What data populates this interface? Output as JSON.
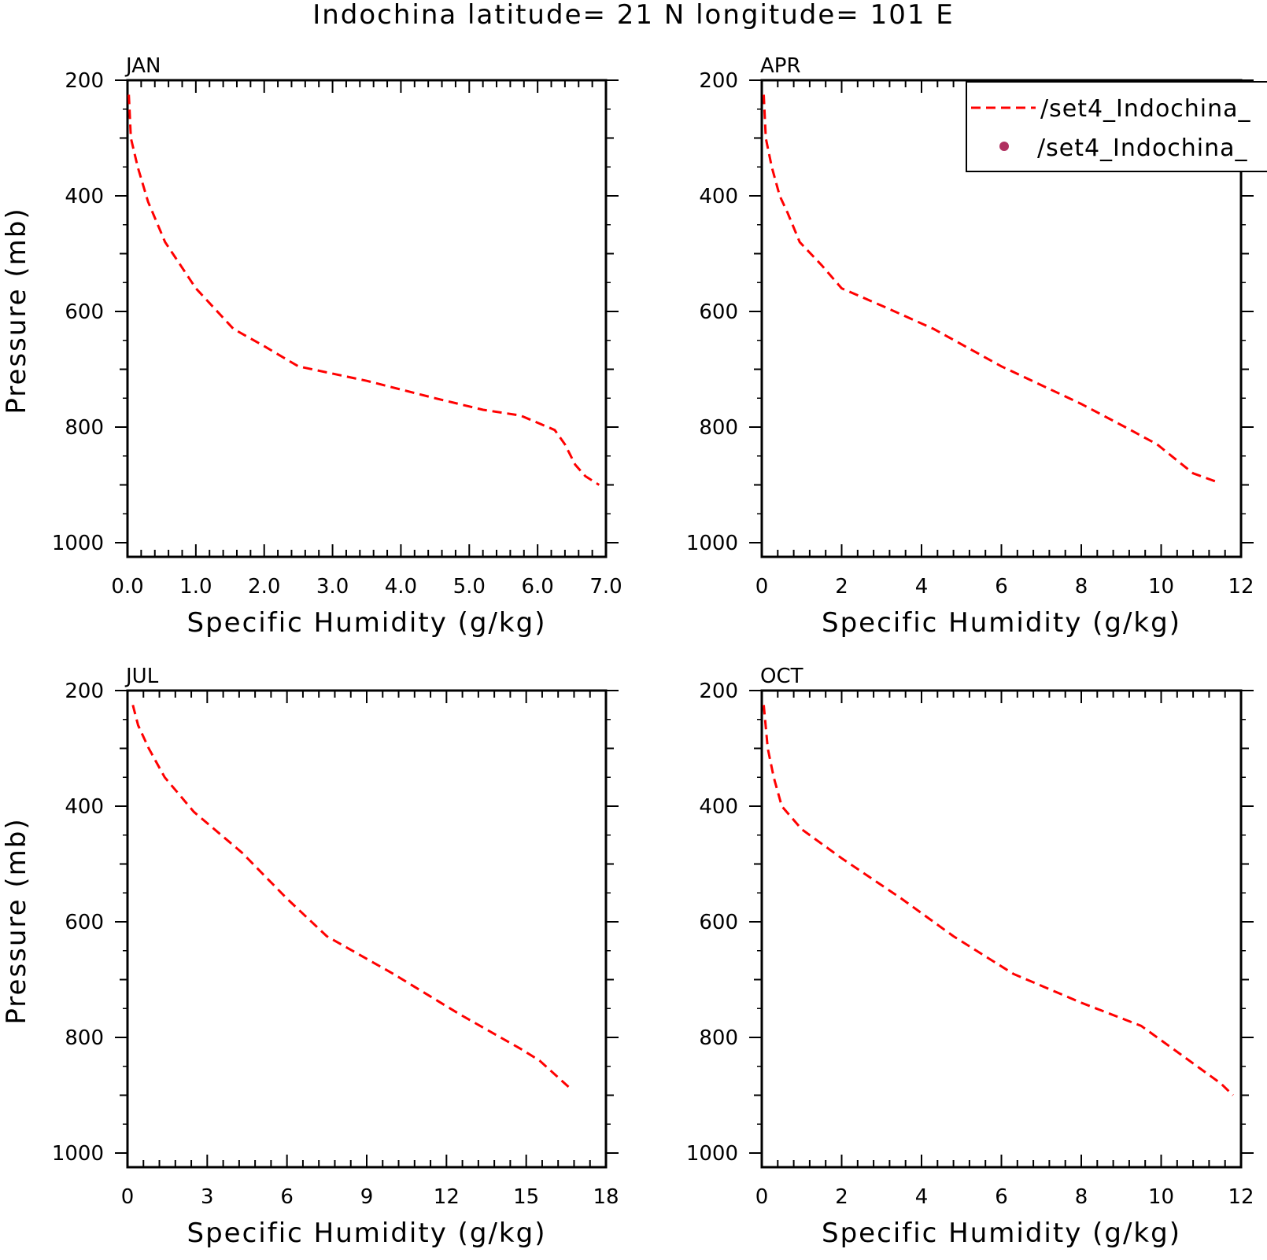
{
  "title": "Indochina  latitude= 21 N longitude= 101 E",
  "legend": {
    "entries": [
      {
        "label": "/set4_Indochina_",
        "style": "dashed-line",
        "color": "#ff0000"
      },
      {
        "label": "/set4_Indochina_",
        "style": "dot",
        "color": "#b03060"
      }
    ]
  },
  "colors": {
    "model_line": "#ff0000",
    "obs_marker": "#b03060",
    "axes": "#000000"
  },
  "chart_data": [
    {
      "type": "line",
      "panel": "JAN",
      "xlabel": "Specific Humidity (g/kg)",
      "ylabel": "Pressure (mb)",
      "xlim": [
        0,
        7
      ],
      "ylim": [
        1000,
        200
      ],
      "y_inverted": true,
      "xticks": [
        0,
        1,
        2,
        3,
        4,
        5,
        6,
        7
      ],
      "xtick_labels": [
        "0.0",
        "1.0",
        "2.0",
        "3.0",
        "4.0",
        "5.0",
        "6.0",
        "7.0"
      ],
      "yticks": [
        200,
        400,
        600,
        800,
        1000
      ],
      "ytick_labels": [
        "200",
        "400",
        "600",
        "800",
        "1000"
      ],
      "series": [
        {
          "style": "dashed",
          "color": "#ff0000",
          "x": [
            0.02,
            0.05,
            0.15,
            0.3,
            0.55,
            1.0,
            1.55,
            2.0,
            2.5,
            3.5,
            4.5,
            5.2,
            5.75,
            6.25,
            6.4,
            6.55,
            6.7,
            6.9
          ],
          "y": [
            225,
            300,
            350,
            410,
            480,
            560,
            630,
            660,
            695,
            720,
            750,
            770,
            780,
            805,
            830,
            865,
            885,
            900
          ]
        }
      ]
    },
    {
      "type": "line",
      "panel": "APR",
      "xlabel": "Specific Humidity (g/kg)",
      "ylabel": "",
      "xlim": [
        0,
        12
      ],
      "ylim": [
        1000,
        200
      ],
      "y_inverted": true,
      "xticks": [
        0,
        2,
        4,
        6,
        8,
        10,
        12
      ],
      "xtick_labels": [
        "0",
        "2",
        "4",
        "6",
        "8",
        "10",
        "12"
      ],
      "yticks": [
        200,
        400,
        600,
        800,
        1000
      ],
      "ytick_labels": [
        "200",
        "400",
        "600",
        "800",
        "1000"
      ],
      "series": [
        {
          "style": "dashed",
          "color": "#ff0000",
          "x": [
            0.05,
            0.1,
            0.25,
            0.45,
            0.65,
            0.95,
            1.5,
            2.0,
            3.0,
            4.3,
            6.0,
            8.0,
            9.1,
            9.9,
            10.8,
            11.4
          ],
          "y": [
            225,
            300,
            350,
            400,
            430,
            480,
            520,
            560,
            590,
            630,
            695,
            760,
            800,
            830,
            880,
            895
          ]
        }
      ]
    },
    {
      "type": "line",
      "panel": "JUL",
      "xlabel": "Specific Humidity (g/kg)",
      "ylabel": "Pressure (mb)",
      "xlim": [
        0,
        18
      ],
      "ylim": [
        1000,
        200
      ],
      "y_inverted": true,
      "xticks": [
        0,
        3,
        6,
        9,
        12,
        15,
        18
      ],
      "xtick_labels": [
        "0",
        "3",
        "6",
        "9",
        "12",
        "15",
        "18"
      ],
      "yticks": [
        200,
        400,
        600,
        800,
        1000
      ],
      "ytick_labels": [
        "200",
        "400",
        "600",
        "800",
        "1000"
      ],
      "series": [
        {
          "style": "dashed",
          "color": "#ff0000",
          "x": [
            0.2,
            0.4,
            0.8,
            1.4,
            2.5,
            4.3,
            6.0,
            7.5,
            10.0,
            12.5,
            14.8,
            15.5,
            16.7
          ],
          "y": [
            225,
            260,
            300,
            350,
            410,
            480,
            560,
            625,
            690,
            760,
            820,
            840,
            890
          ]
        }
      ]
    },
    {
      "type": "line",
      "panel": "OCT",
      "xlabel": "Specific Humidity (g/kg)",
      "ylabel": "",
      "xlim": [
        0,
        12
      ],
      "ylim": [
        1000,
        200
      ],
      "y_inverted": true,
      "xticks": [
        0,
        2,
        4,
        6,
        8,
        10,
        12
      ],
      "xtick_labels": [
        "0",
        "2",
        "4",
        "6",
        "8",
        "10",
        "12"
      ],
      "yticks": [
        200,
        400,
        600,
        800,
        1000
      ],
      "ytick_labels": [
        "200",
        "400",
        "600",
        "800",
        "1000"
      ],
      "series": [
        {
          "style": "dashed",
          "color": "#ff0000",
          "x": [
            0.05,
            0.15,
            0.3,
            0.5,
            1.0,
            2.0,
            3.5,
            4.8,
            6.3,
            8.0,
            9.5,
            10.5,
            11.5,
            11.8
          ],
          "y": [
            225,
            300,
            350,
            400,
            440,
            490,
            560,
            625,
            690,
            740,
            780,
            830,
            880,
            900
          ]
        }
      ]
    }
  ]
}
